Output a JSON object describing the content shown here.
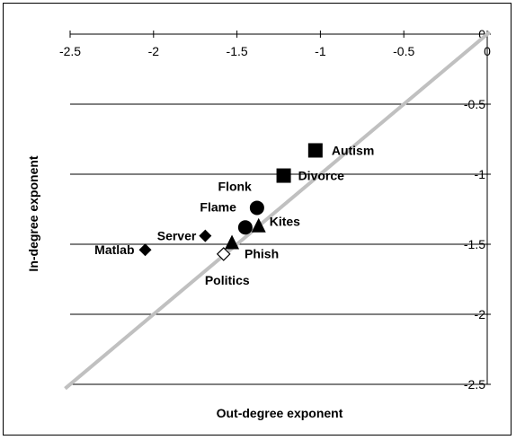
{
  "chart_data": {
    "type": "scatter",
    "title": "",
    "xlabel": "Out-degree exponent",
    "ylabel": "In-degree exponent",
    "xlim": [
      -2.5,
      0
    ],
    "ylim": [
      -2.5,
      0
    ],
    "x_ticks": [
      "-2.5",
      "-2",
      "-1.5",
      "-1",
      "-0.5",
      "0"
    ],
    "y_ticks": [
      "0",
      "-0.5",
      "-1",
      "-1.5",
      "-2",
      "-2.5"
    ],
    "reference_line": {
      "type": "y=x",
      "color": "#c0c0c0"
    },
    "grid": true,
    "legend": "none",
    "points": [
      {
        "label": "Autism",
        "x": -1.03,
        "y": -0.83,
        "marker": "square"
      },
      {
        "label": "Divorce",
        "x": -1.22,
        "y": -1.01,
        "marker": "square"
      },
      {
        "label": "Flonk",
        "x": -1.38,
        "y": -1.24,
        "marker": "circle"
      },
      {
        "label": "Flame",
        "x": -1.45,
        "y": -1.38,
        "marker": "circle"
      },
      {
        "label": "Kites",
        "x": -1.37,
        "y": -1.37,
        "marker": "triangle"
      },
      {
        "label": "Phish",
        "x": -1.53,
        "y": -1.49,
        "marker": "triangle"
      },
      {
        "label": "Server",
        "x": -1.69,
        "y": -1.44,
        "marker": "diamond"
      },
      {
        "label": "Matlab",
        "x": -2.05,
        "y": -1.54,
        "marker": "diamond"
      },
      {
        "label": "Politics",
        "x": -1.58,
        "y": -1.57,
        "marker": "diamond-open"
      }
    ]
  }
}
